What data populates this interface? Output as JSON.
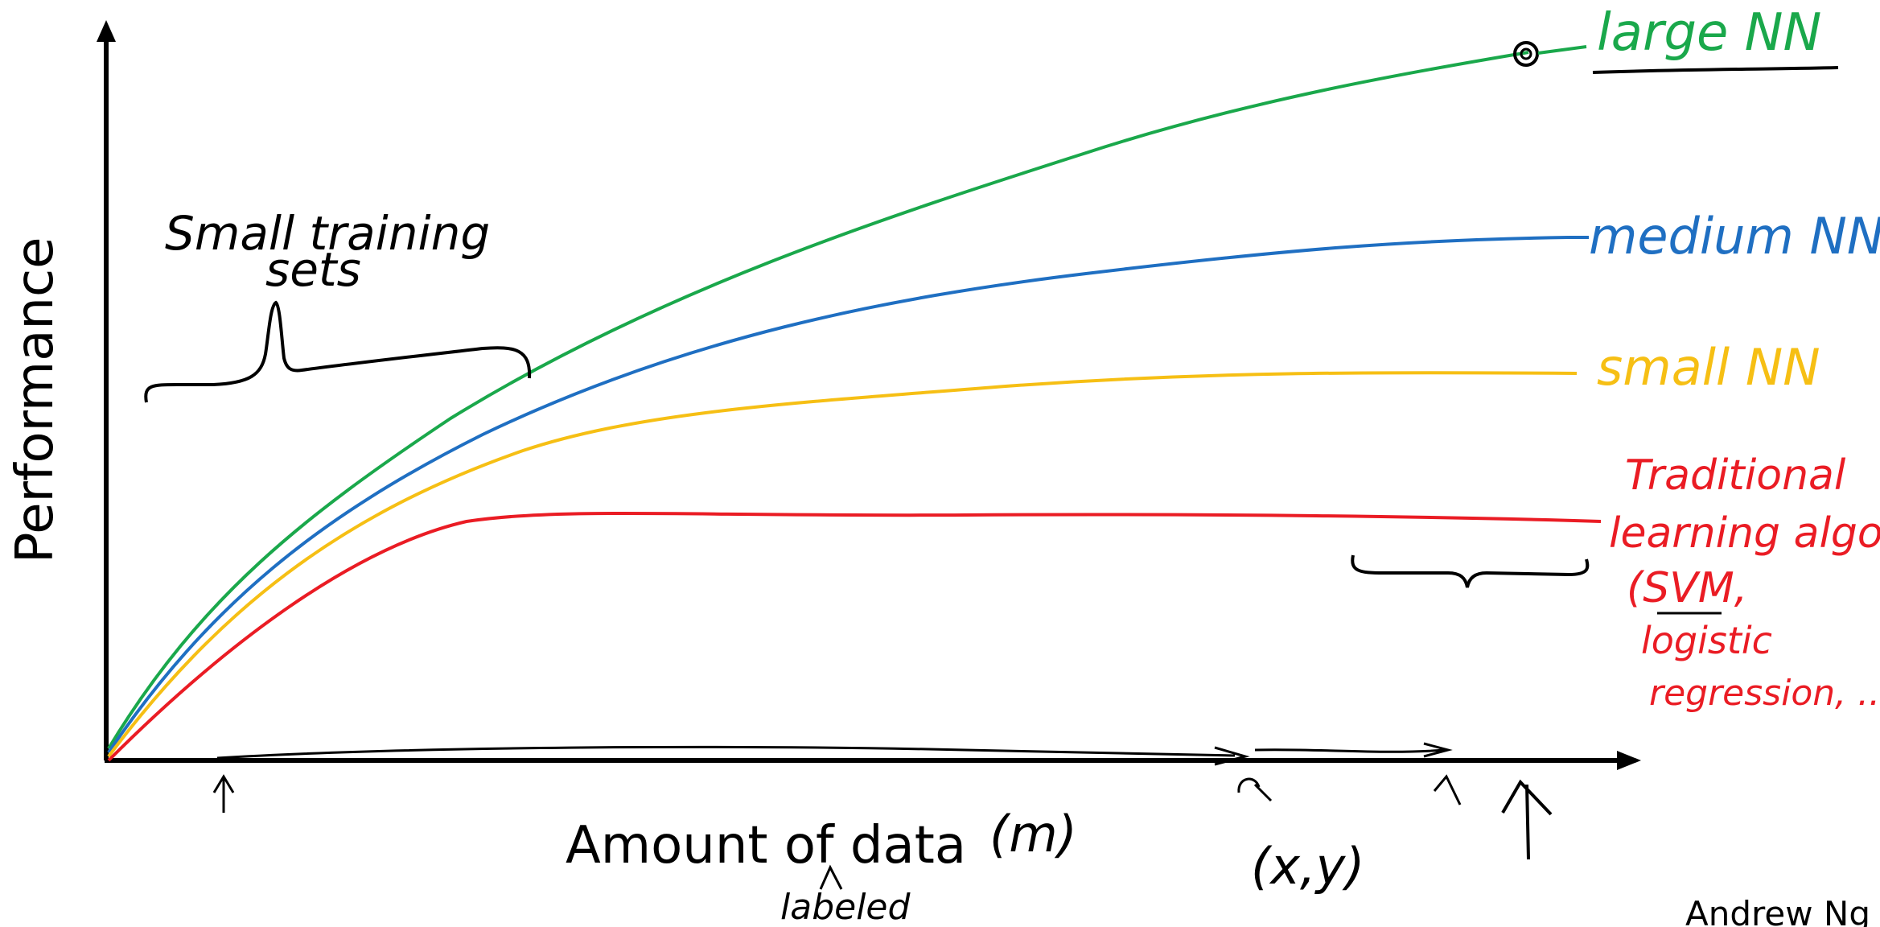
{
  "axes": {
    "y_label": "Performance",
    "x_label": "Amount of data"
  },
  "colors": {
    "large": "#1aa84b",
    "medium": "#1f6fc2",
    "small": "#f6bf14",
    "traditional": "#ea1c24",
    "ink": "#000000"
  },
  "curves": {
    "large_label": "large NN",
    "medium_label": "medium NN",
    "small_label": "small NN",
    "traditional_label": [
      "Traditional",
      "learning algo",
      "(SVM,",
      "logistic",
      "regression, ...)"
    ]
  },
  "annotations": {
    "small_sets_line1": "Small training",
    "small_sets_line2": "sets",
    "m": "(m)",
    "labeled": "labeled",
    "xy": "(x,y)"
  },
  "credit": "Andrew Ng"
}
